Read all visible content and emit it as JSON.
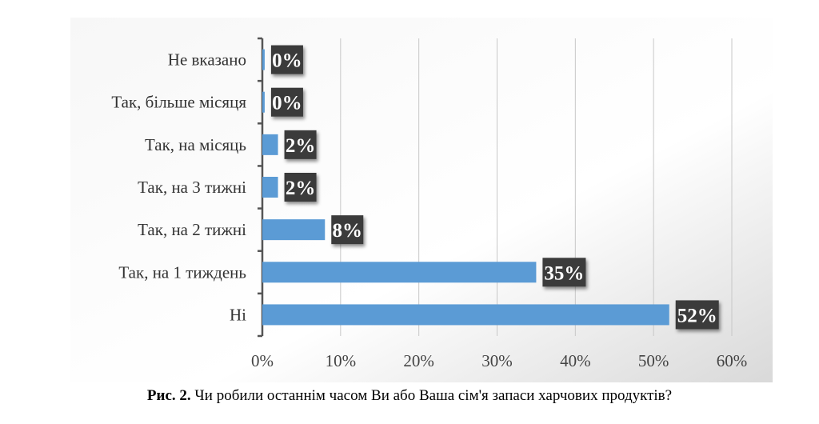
{
  "chart_data": {
    "type": "bar",
    "orientation": "horizontal",
    "categories": [
      "Не вказано",
      "Так, більше місяця",
      "Так, на місяць",
      "Так, на 3 тижні",
      "Так, на 2 тижні",
      "Так, на 1 тиждень",
      "Ні"
    ],
    "values": [
      0.3,
      0.3,
      2,
      2,
      8,
      35,
      52
    ],
    "data_labels": [
      "0%",
      "0%",
      "2%",
      "2%",
      "8%",
      "35%",
      "52%"
    ],
    "xlim": [
      0,
      60
    ],
    "xticks": [
      "0%",
      "10%",
      "20%",
      "30%",
      "40%",
      "50%",
      "60%"
    ],
    "grid": true,
    "bar_color": "#5b9bd5",
    "label_bg": "#3a3a3a"
  },
  "caption": {
    "prefix": "Рис. 2.",
    "text": " Чи робили останнім часом Ви або Ваша сім'я запаси харчових продуктів?"
  }
}
